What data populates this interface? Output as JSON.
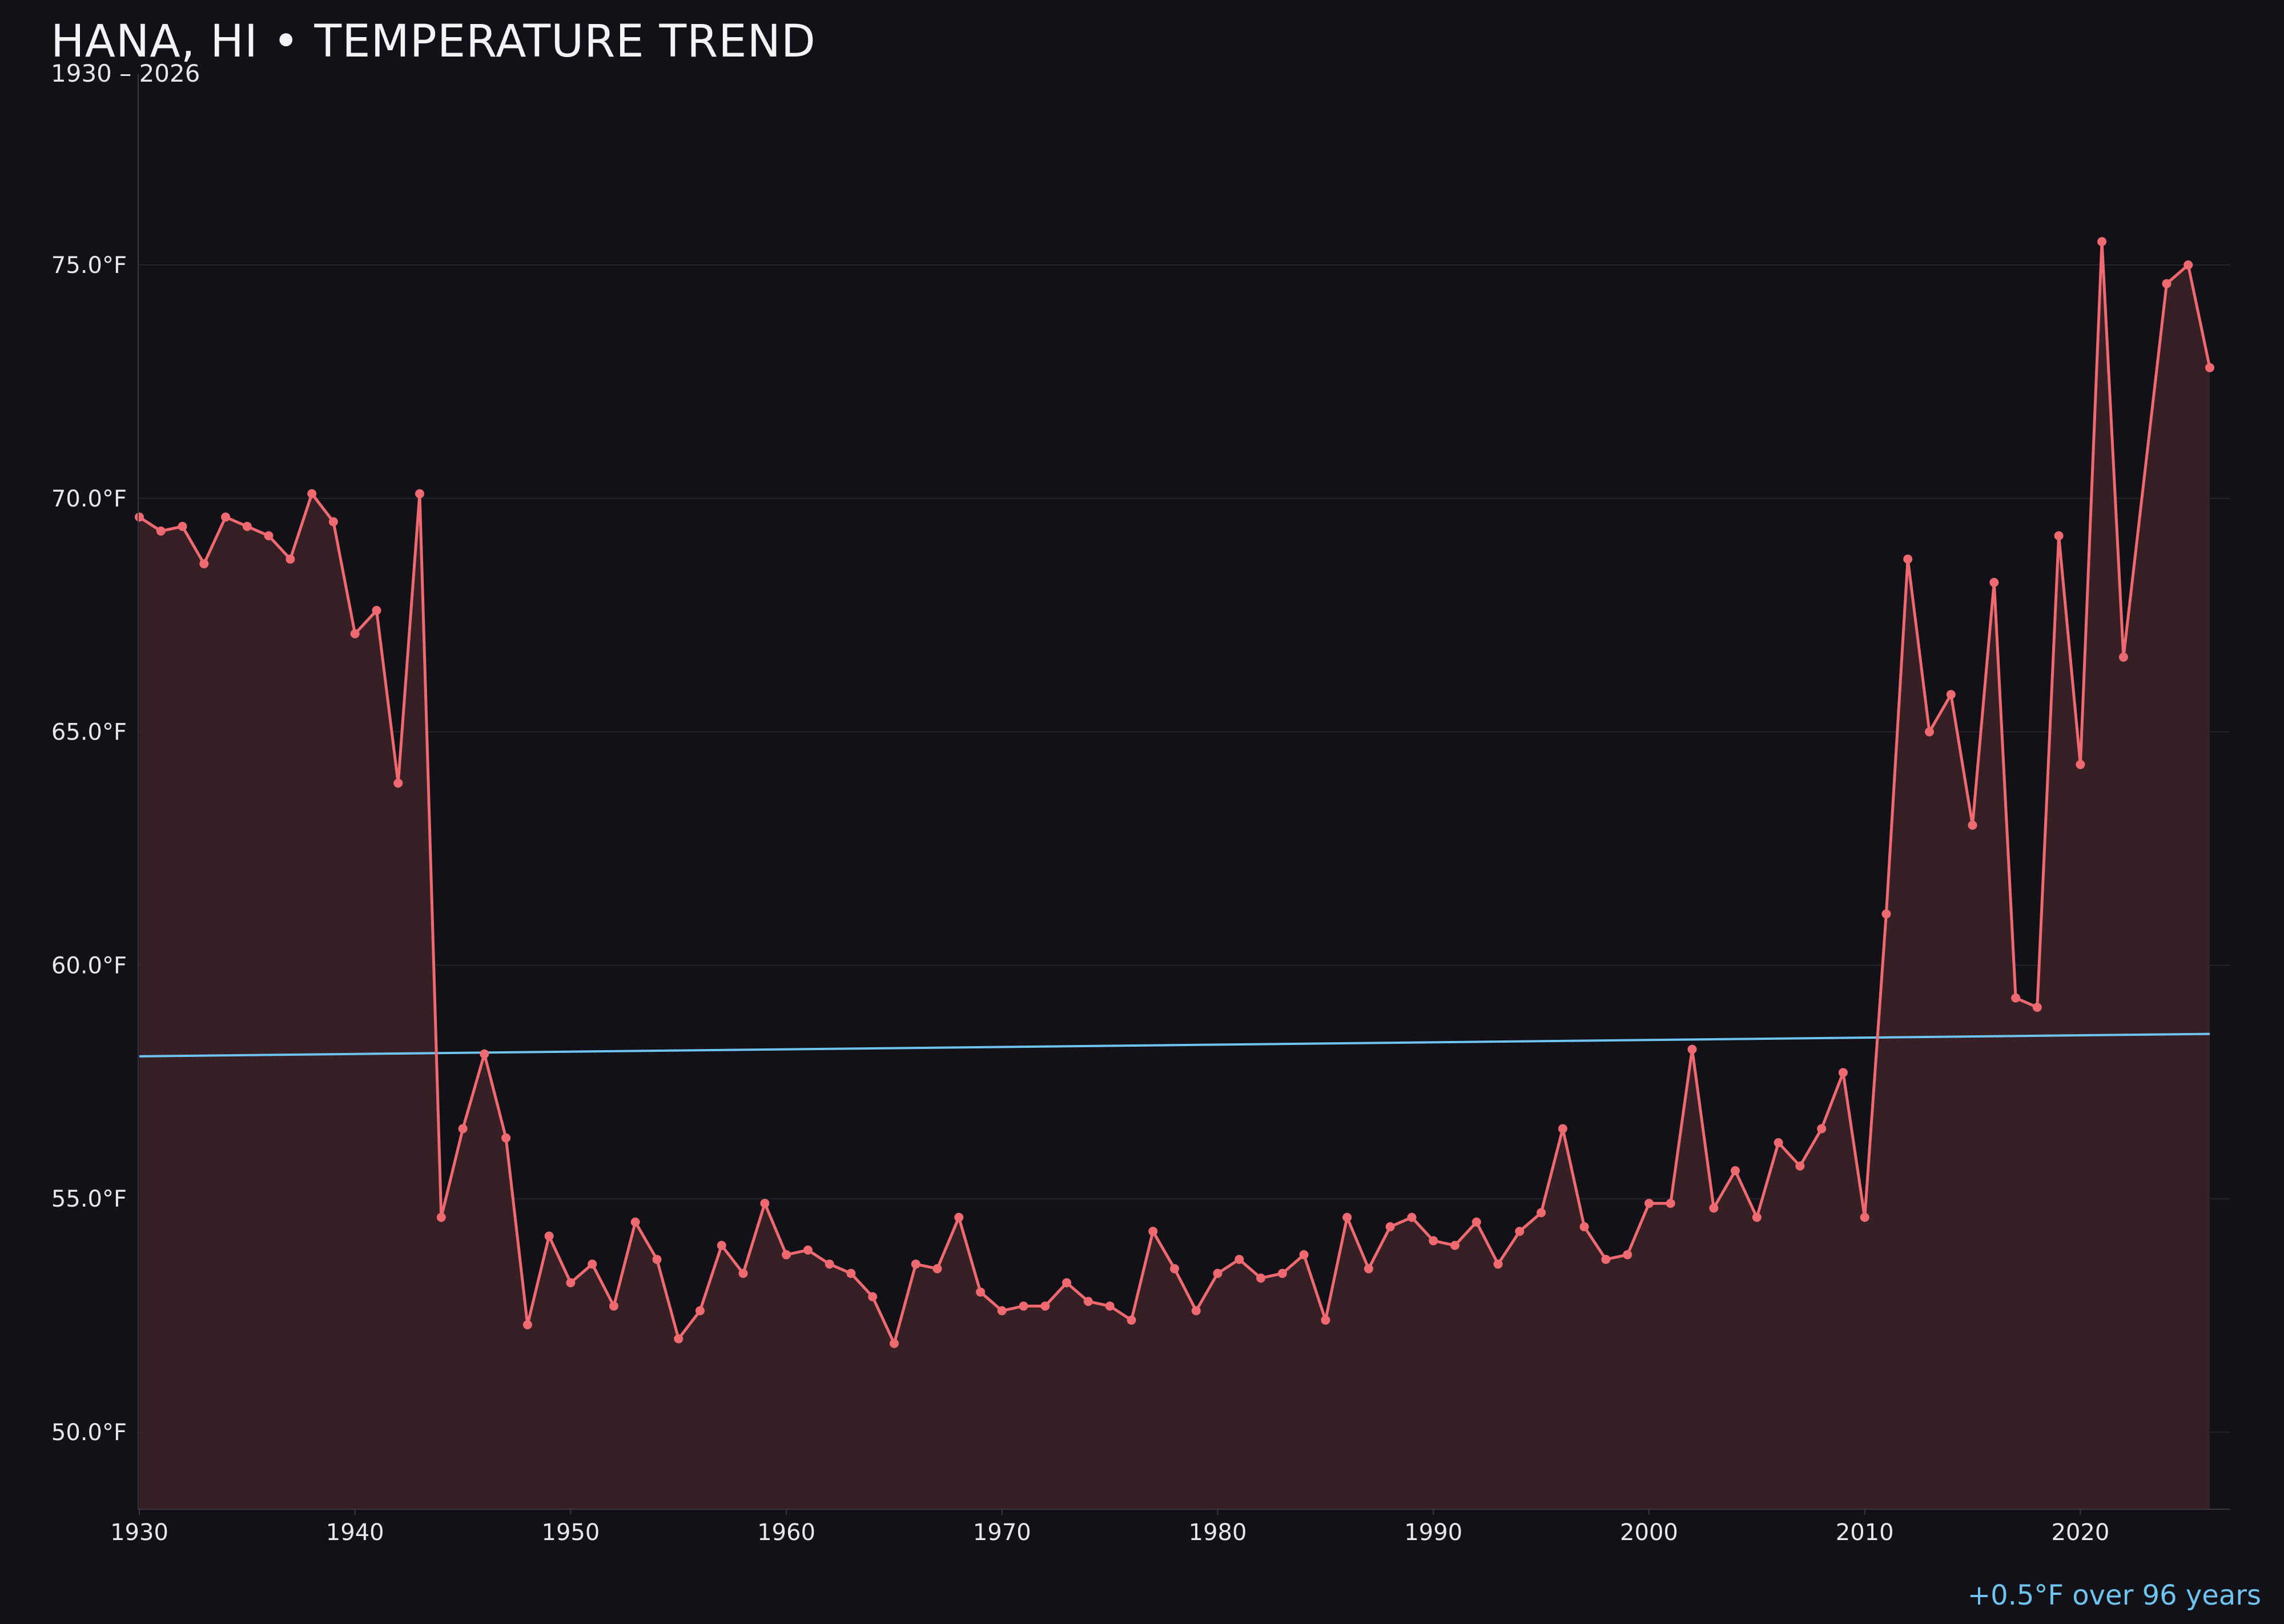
{
  "chart_data": {
    "type": "line",
    "title": "HANA, HI • TEMPERATURE TREND",
    "subtitle": "1930 – 2026",
    "annotation": "+0.5°F over 96 years",
    "xlim": [
      1930,
      2027
    ],
    "ylim": [
      48.4,
      79.0
    ],
    "xticks": [
      1930,
      1940,
      1950,
      1960,
      1970,
      1980,
      1990,
      2000,
      2010,
      2020
    ],
    "yticks": [
      50,
      55,
      60,
      65,
      70,
      75
    ],
    "ytick_labels": [
      "50.0°F",
      "55.0°F",
      "60.0°F",
      "65.0°F",
      "70.0°F",
      "75.0°F"
    ],
    "grid": true,
    "colors": {
      "series": "#ef6a70",
      "fill": "#371f26",
      "trend": "#6fc3ef",
      "background": "#121118"
    },
    "series": [
      {
        "x": [
          1930,
          1931,
          1932,
          1933,
          1934,
          1935,
          1936,
          1937,
          1938,
          1939,
          1940,
          1941,
          1942,
          1943,
          1944,
          1945,
          1946,
          1947,
          1948,
          1949,
          1950,
          1951,
          1952,
          1953,
          1954,
          1955,
          1956,
          1957,
          1958,
          1959,
          1960,
          1961,
          1962,
          1963,
          1964,
          1965,
          1966,
          1967,
          1968,
          1969,
          1970,
          1971,
          1972,
          1973,
          1974,
          1975,
          1976,
          1977,
          1978,
          1979,
          1980,
          1981,
          1982,
          1983,
          1984,
          1985,
          1986,
          1987,
          1988,
          1989,
          1990,
          1991,
          1992,
          1993,
          1994,
          1995,
          1996,
          1997,
          1998,
          1999,
          2000,
          2001,
          2002,
          2003,
          2004,
          2005,
          2006,
          2007,
          2008,
          2009,
          2010,
          2011,
          2012,
          2013,
          2014,
          2015,
          2016,
          2017,
          2018,
          2019,
          2020,
          2021,
          2022,
          2024,
          2025,
          2026
        ],
        "y": [
          69.6,
          69.3,
          69.4,
          68.6,
          69.6,
          69.4,
          69.2,
          68.7,
          70.1,
          69.5,
          67.1,
          67.6,
          63.9,
          70.1,
          54.6,
          56.5,
          58.1,
          56.3,
          52.3,
          54.2,
          53.2,
          53.6,
          52.7,
          54.5,
          53.7,
          52.0,
          52.6,
          54.0,
          53.4,
          54.9,
          53.8,
          53.9,
          53.6,
          53.4,
          52.9,
          51.9,
          53.6,
          53.5,
          54.6,
          53.0,
          52.6,
          52.7,
          52.7,
          53.2,
          52.8,
          52.7,
          52.4,
          54.3,
          53.5,
          52.6,
          53.4,
          53.7,
          53.3,
          53.4,
          53.8,
          52.4,
          54.6,
          53.5,
          54.4,
          54.6,
          54.1,
          54.0,
          54.5,
          53.6,
          54.3,
          54.7,
          56.5,
          54.4,
          53.7,
          53.8,
          54.9,
          54.9,
          58.2,
          54.8,
          55.6,
          54.6,
          56.2,
          55.7,
          56.5,
          57.7,
          54.6,
          61.1,
          68.7,
          65.0,
          65.8,
          63.0,
          68.2,
          59.3,
          59.1,
          69.2,
          64.3,
          75.5,
          66.6,
          74.6,
          75.0,
          72.8
        ]
      }
    ],
    "trend_line": {
      "x": [
        1930,
        2026
      ],
      "y": [
        58.05,
        58.53
      ]
    }
  }
}
